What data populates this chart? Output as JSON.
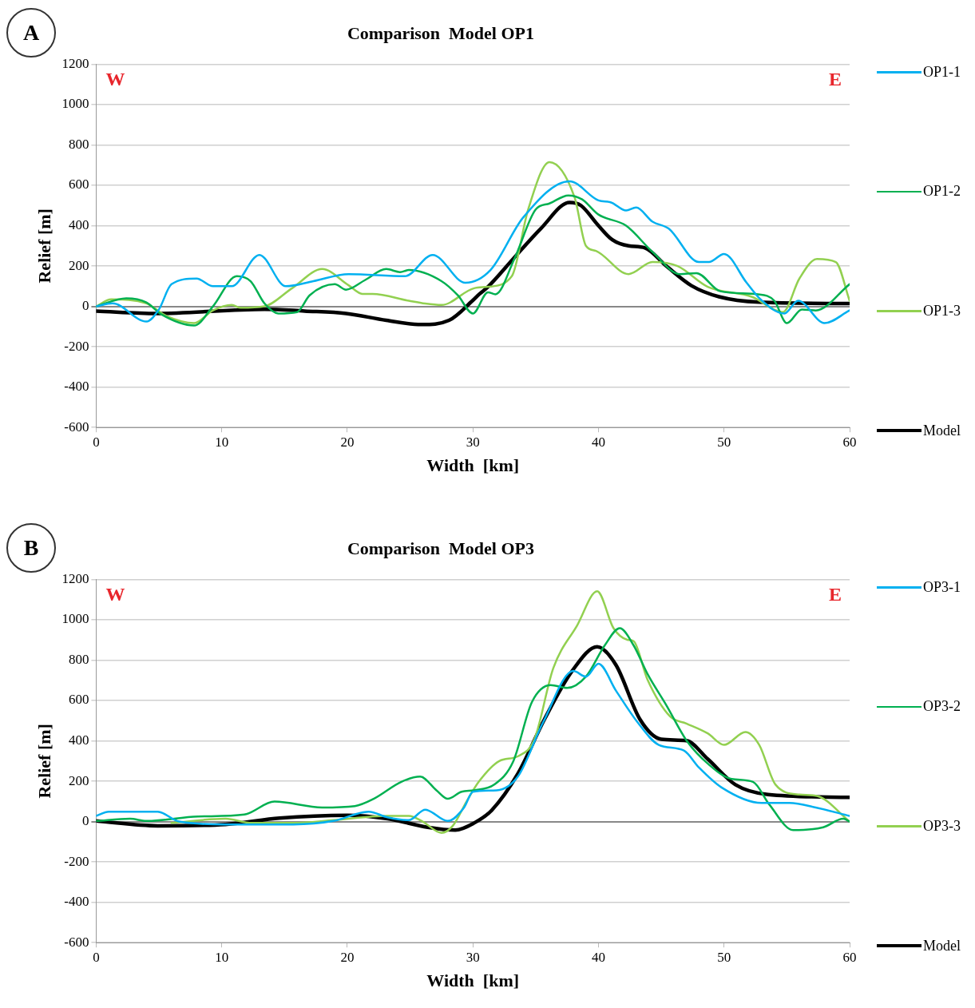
{
  "chart_data": [
    {
      "type": "line",
      "title": "Comparison  Model OP1",
      "xlabel": "Width  [km]",
      "ylabel": "Relief [m]",
      "annotations": [
        "A",
        "W",
        "E"
      ],
      "xlim": [
        0,
        60
      ],
      "ylim": [
        -600,
        1200
      ],
      "xticks": [
        0,
        10,
        20,
        30,
        40,
        50,
        60
      ],
      "yticks": [
        -600,
        -400,
        -200,
        0,
        200,
        400,
        600,
        800,
        1000,
        1200
      ],
      "grid": "y",
      "legend": "right",
      "marker": "none",
      "line_style": "solid",
      "series": [
        {
          "name": "OP1-1",
          "color": "#00b0f0",
          "x": [
            0,
            1.3,
            4,
            5,
            6,
            8,
            9.3,
            10.8,
            13,
            15.1,
            17.3,
            20.1,
            24.6,
            26.8,
            29.4,
            31.4,
            34,
            37.7,
            40,
            41,
            42.2,
            43,
            44.3,
            45.6,
            48,
            48.8,
            50,
            51.8,
            52.9,
            54.8,
            55.9,
            58,
            60
          ],
          "values": [
            0,
            15,
            -75,
            -15,
            110,
            138,
            100,
            100,
            255,
            100,
            125,
            160,
            150,
            255,
            117,
            180,
            440,
            620,
            525,
            515,
            475,
            490,
            420,
            385,
            220,
            220,
            260,
            117,
            35,
            -35,
            28,
            -83,
            -20
          ]
        },
        {
          "name": "OP1-2",
          "color": "#00b050",
          "x": [
            0,
            2.4,
            4,
            5.2,
            7.8,
            9.3,
            11.2,
            12.3,
            13.4,
            14.5,
            16,
            17,
            19,
            19.9,
            21.4,
            23.1,
            24.2,
            24.9,
            27.5,
            28.8,
            30,
            31.2,
            31.8,
            33.3,
            35,
            36.1,
            37.6,
            38.7,
            40,
            42.2,
            44.3,
            46.5,
            47.8,
            49.7,
            52.7,
            54,
            55,
            56.2,
            57.3,
            60
          ],
          "values": [
            0,
            40,
            20,
            -40,
            -95,
            0,
            150,
            125,
            15,
            -35,
            -28,
            55,
            110,
            83,
            130,
            185,
            170,
            180,
            125,
            55,
            -35,
            70,
            60,
            235,
            480,
            510,
            550,
            530,
            455,
            400,
            270,
            160,
            165,
            75,
            60,
            28,
            -83,
            -15,
            -20,
            110
          ]
        },
        {
          "name": "OP1-3",
          "color": "#92d050",
          "x": [
            0,
            1.2,
            4,
            5.6,
            7.8,
            9.3,
            10.8,
            11.5,
            13.4,
            15.6,
            18,
            20.1,
            21.2,
            22,
            24.9,
            26.2,
            27.5,
            30.1,
            31.2,
            33.1,
            34.4,
            36.1,
            38.1,
            39,
            39.8,
            42.4,
            44.3,
            46.3,
            48.7,
            52.2,
            54.7,
            56,
            57.4,
            58.9,
            60
          ],
          "values": [
            0,
            35,
            15,
            -48,
            -83,
            -20,
            7,
            -7,
            0,
            90,
            185,
            105,
            62,
            62,
            28,
            14,
            7,
            90,
            97,
            150,
            480,
            715,
            540,
            300,
            275,
            160,
            220,
            200,
            97,
            48,
            -28,
            138,
            235,
            220,
            28
          ]
        },
        {
          "name": "Model",
          "color": "#000000",
          "x": [
            0,
            4.8,
            13.4,
            16.6,
            19.9,
            23.1,
            25.9,
            28.1,
            30,
            30.5,
            31.2,
            33.2,
            35.4,
            37.7,
            38.6,
            40,
            41.1,
            42.4,
            43.7,
            45.4,
            47.4,
            49.6,
            52.8,
            60
          ],
          "values": [
            -23,
            -35,
            -14,
            -23,
            -35,
            -69,
            -90,
            -69,
            30,
            60,
            97,
            235,
            385,
            515,
            500,
            400,
            330,
            300,
            290,
            200,
            103,
            48,
            21,
            14
          ]
        }
      ]
    },
    {
      "type": "line",
      "title": "Comparison  Model OP3",
      "xlabel": "Width  [km]",
      "ylabel": "Relief [m]",
      "annotations": [
        "B",
        "W",
        "E"
      ],
      "xlim": [
        0,
        60
      ],
      "ylim": [
        -600,
        1200
      ],
      "xticks": [
        0,
        10,
        20,
        30,
        40,
        50,
        60
      ],
      "yticks": [
        -600,
        -400,
        -200,
        0,
        200,
        400,
        600,
        800,
        1000,
        1200
      ],
      "grid": "y",
      "legend": "right",
      "marker": "none",
      "line_style": "solid",
      "series": [
        {
          "name": "OP3-1",
          "color": "#00b0f0",
          "x": [
            0,
            1,
            4.9,
            6.6,
            10.3,
            15.7,
            18.9,
            21.7,
            23.2,
            24.9,
            26.2,
            28,
            29.3,
            30,
            31.9,
            33.6,
            35.6,
            38,
            39,
            40,
            41.4,
            43.1,
            44.8,
            46.8,
            48,
            49.8,
            53,
            55.2,
            57.3,
            60
          ],
          "values": [
            28,
            49,
            49,
            0,
            -14,
            -14,
            3,
            49,
            21,
            7,
            59,
            3,
            70,
            148,
            155,
            225,
            493,
            746,
            718,
            782,
            648,
            493,
            380,
            352,
            268,
            169,
            92,
            92,
            70,
            28
          ]
        },
        {
          "name": "OP3-2",
          "color": "#00b050",
          "x": [
            0,
            2.7,
            4,
            8.1,
            11.8,
            14.2,
            18,
            20.6,
            22.1,
            24.3,
            25.8,
            27.1,
            28,
            29.1,
            30.1,
            31.7,
            33.2,
            34.7,
            36.2,
            37.5,
            39,
            40.5,
            41.7,
            42.8,
            43.9,
            45.4,
            47.1,
            48.8,
            50.6,
            52.3,
            53.6,
            55.5,
            57.9,
            59.5,
            60
          ],
          "values": [
            3,
            14,
            3,
            25,
            35,
            99,
            70,
            77,
            113,
            197,
            223,
            155,
            113,
            148,
            155,
            183,
            296,
            592,
            676,
            662,
            718,
            873,
            958,
            873,
            732,
            577,
            394,
            282,
            211,
            197,
            85,
            -42,
            -28,
            14,
            0
          ]
        },
        {
          "name": "OP3-3",
          "color": "#92d050",
          "x": [
            6,
            10.3,
            12.4,
            15.7,
            18.9,
            23.2,
            24.9,
            26,
            27.5,
            28.4,
            29.5,
            30.5,
            32.1,
            33.6,
            34.9,
            36.4,
            38.3,
            39.9,
            41.2,
            42.3,
            42.8,
            43.9,
            45.7,
            47,
            48.7,
            50,
            51.7,
            52.8,
            54.1,
            56,
            57.4,
            60
          ],
          "values": [
            -7,
            14,
            -7,
            -7,
            7,
            28,
            28,
            0,
            -56,
            -21,
            100,
            200,
            300,
            324,
            408,
            760,
            972,
            1141,
            958,
            901,
            894,
            704,
            521,
            486,
            437,
            380,
            444,
            380,
            183,
            134,
            127,
            0
          ]
        },
        {
          "name": "Model",
          "color": "#000000",
          "x": [
            0,
            4.9,
            10.3,
            14.6,
            20,
            23.2,
            26.4,
            28.6,
            30.1,
            31.5,
            33.6,
            35.7,
            37.9,
            39.9,
            41.4,
            43.3,
            45,
            47,
            48.7,
            50.9,
            53.5,
            60
          ],
          "values": [
            3,
            -21,
            -14,
            17,
            31,
            14,
            -28,
            -42,
            -7,
            56,
            239,
            507,
            746,
            866,
            775,
            507,
            408,
            401,
            310,
            183,
            134,
            120
          ]
        }
      ]
    }
  ]
}
